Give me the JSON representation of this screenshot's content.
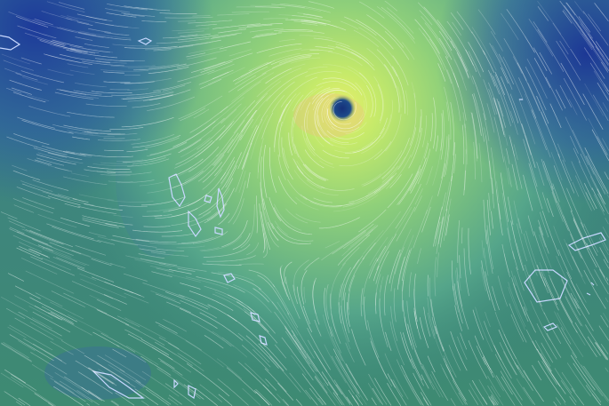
{
  "map": {
    "type": "animated wind speed map",
    "features": [
      "tropical-cyclone",
      "islands"
    ],
    "colors": {
      "calm": "#1f3f95",
      "moderate": "#3f8a7a",
      "strong": "#9be06a",
      "extreme": "#e4f070",
      "eye": "#16307a",
      "coastline": "#c8d8ff",
      "streak": "#ffffff"
    }
  }
}
